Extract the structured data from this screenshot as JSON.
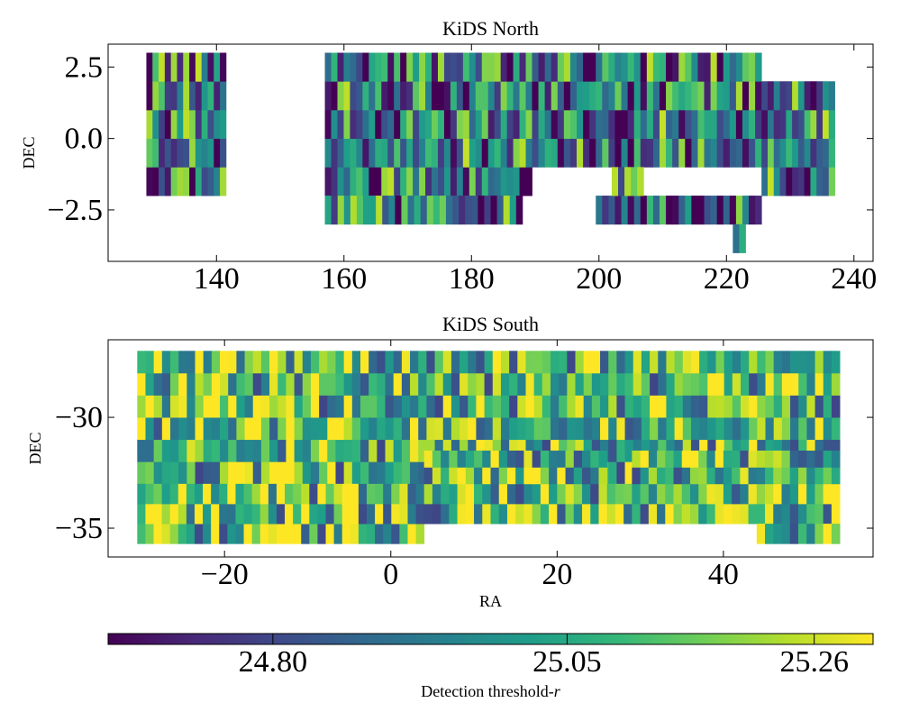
{
  "chart_data": [
    {
      "type": "heatmap",
      "title": "KiDS North",
      "xlabel": "",
      "ylabel": "DEC",
      "xlim": [
        123,
        243
      ],
      "ylim": [
        -4.3,
        3.3
      ],
      "xticks": [
        140,
        160,
        180,
        200,
        220,
        240
      ],
      "xtick_labels": [
        "140",
        "160",
        "180",
        "200",
        "220",
        "240"
      ],
      "yticks": [
        2.5,
        0.0,
        -2.5
      ],
      "ytick_labels": [
        "2.5",
        "0.0",
        "−2.5"
      ],
      "tiles": [
        {
          "ra": [
            129.0,
            141.5
          ],
          "dec": [
            -2.0,
            3.0
          ]
        },
        {
          "ra": [
            157.0,
            189.5
          ],
          "dec": [
            -2.0,
            3.0
          ]
        },
        {
          "ra": [
            189.5,
            225.5
          ],
          "dec": [
            -1.0,
            3.0
          ]
        },
        {
          "ra": [
            225.5,
            237.0
          ],
          "dec": [
            -2.0,
            2.0
          ]
        },
        {
          "ra": [
            157.0,
            188.0
          ],
          "dec": [
            -3.0,
            -2.0
          ]
        },
        {
          "ra": [
            199.5,
            225.5
          ],
          "dec": [
            -3.0,
            -2.0
          ]
        },
        {
          "ra": [
            202.0,
            207.0
          ],
          "dec": [
            -2.0,
            -1.0
          ]
        },
        {
          "ra": [
            221.0,
            223.0
          ],
          "dec": [
            -4.0,
            -3.0
          ]
        }
      ]
    },
    {
      "type": "heatmap",
      "title": "KiDS South",
      "xlabel": "RA",
      "ylabel": "DEC",
      "xlim": [
        -34,
        58
      ],
      "ylim": [
        -36.3,
        -26.5
      ],
      "xticks": [
        -20,
        0,
        20,
        40
      ],
      "xtick_labels": [
        "−20",
        "0",
        "20",
        "40"
      ],
      "yticks": [
        -30,
        -35
      ],
      "ytick_labels": [
        "−30",
        "−35"
      ],
      "tiles": [
        {
          "ra": [
            -30.5,
            54.0
          ],
          "dec": [
            -33.0,
            -27.0
          ]
        },
        {
          "ra": [
            -30.5,
            4.0
          ],
          "dec": [
            -35.7,
            -33.0
          ]
        },
        {
          "ra": [
            4.0,
            54.0
          ],
          "dec": [
            -34.8,
            -33.0
          ]
        },
        {
          "ra": [
            44.0,
            54.0
          ],
          "dec": [
            -35.7,
            -34.8
          ]
        },
        {
          "ra": [
            4.0,
            26.0
          ],
          "dec": [
            -33.0,
            -31.5
          ]
        },
        {
          "ra": [
            29.0,
            54.0
          ],
          "dec": [
            -33.0,
            -31.5
          ]
        }
      ]
    }
  ],
  "colorbar": {
    "label_prefix": "Detection threshold-",
    "label_var": "r",
    "min": 24.66,
    "max": 25.31,
    "ticks": [
      24.8,
      25.05,
      25.26
    ],
    "tick_labels": [
      "24.80",
      "25.05",
      "25.26"
    ],
    "colormap": "viridis",
    "colormap_stops": [
      "#440154",
      "#482878",
      "#3e4989",
      "#31688e",
      "#26828e",
      "#1f9e89",
      "#35b779",
      "#6ece58",
      "#b5de2b",
      "#fde725"
    ]
  }
}
